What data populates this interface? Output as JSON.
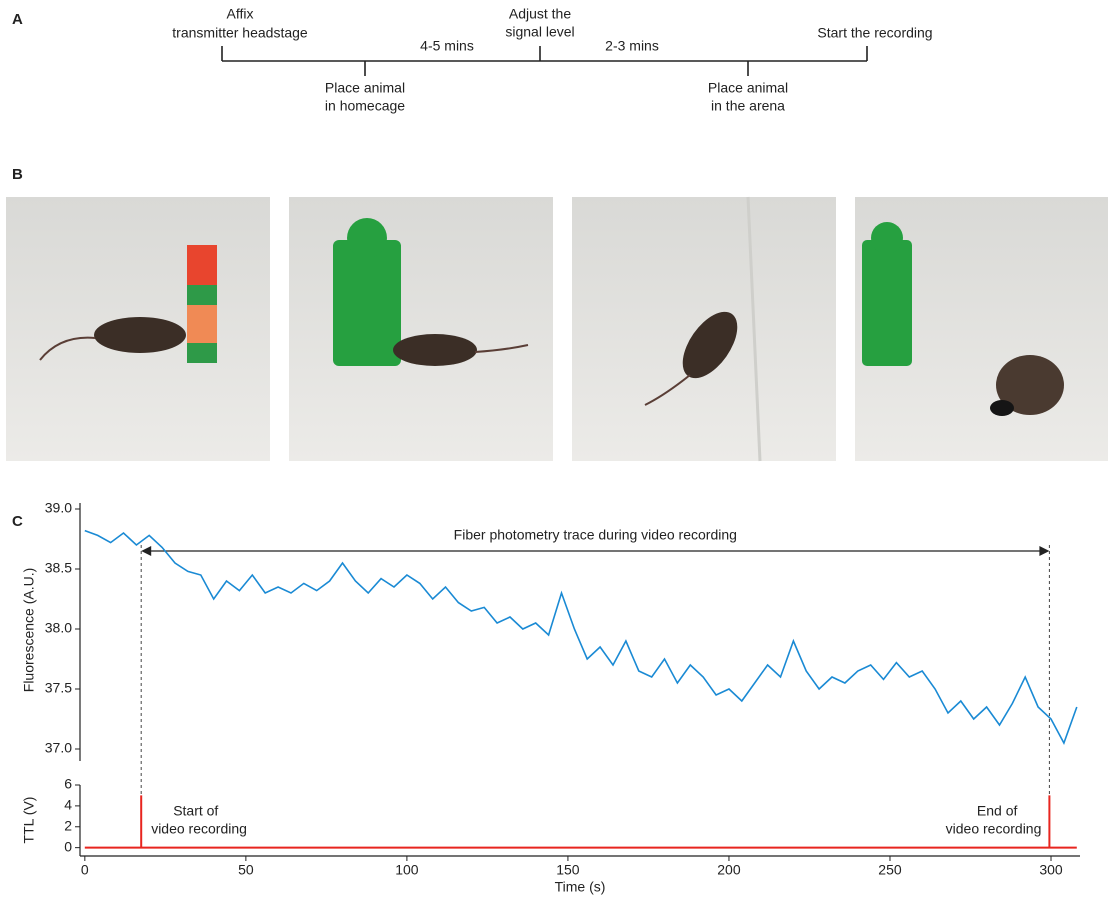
{
  "panels": {
    "a": "A",
    "b": "B",
    "c": "C"
  },
  "timeline": {
    "events": [
      {
        "lines": [
          "Affix",
          "transmitter headstage"
        ]
      },
      {
        "lines": [
          "Place animal",
          "in homecage"
        ]
      },
      {
        "lines": [
          "Adjust the",
          "signal level"
        ]
      },
      {
        "lines": [
          "Place animal",
          "in the arena"
        ]
      },
      {
        "lines": [
          "Start the recording"
        ]
      }
    ],
    "intervals": [
      "4-5 mins",
      "2-3 mins"
    ]
  },
  "chart_data": [
    {
      "type": "line",
      "ylabel": "Fluorescence (A.U.)",
      "annotation": "Fiber photometry trace during video recording",
      "x": [
        0,
        4,
        8,
        12,
        16,
        20,
        24,
        28,
        32,
        36,
        40,
        44,
        48,
        52,
        56,
        60,
        64,
        68,
        72,
        76,
        80,
        84,
        88,
        92,
        96,
        100,
        104,
        108,
        112,
        116,
        120,
        124,
        128,
        132,
        136,
        140,
        144,
        148,
        152,
        156,
        160,
        164,
        168,
        172,
        176,
        180,
        184,
        188,
        192,
        196,
        200,
        204,
        208,
        212,
        216,
        220,
        224,
        228,
        232,
        236,
        240,
        244,
        248,
        252,
        256,
        260,
        264,
        268,
        272,
        276,
        280,
        284,
        288,
        292,
        296,
        300,
        304,
        308
      ],
      "series": [
        {
          "color": "#1a8ad4",
          "values": [
            38.82,
            38.78,
            38.72,
            38.8,
            38.7,
            38.78,
            38.68,
            38.55,
            38.48,
            38.45,
            38.25,
            38.4,
            38.32,
            38.45,
            38.3,
            38.35,
            38.3,
            38.38,
            38.32,
            38.4,
            38.55,
            38.4,
            38.3,
            38.42,
            38.35,
            38.45,
            38.38,
            38.25,
            38.35,
            38.22,
            38.15,
            38.18,
            38.05,
            38.1,
            38.0,
            38.05,
            37.95,
            38.3,
            38.0,
            37.75,
            37.85,
            37.7,
            37.9,
            37.65,
            37.6,
            37.75,
            37.55,
            37.7,
            37.6,
            37.45,
            37.5,
            37.4,
            37.55,
            37.7,
            37.6,
            37.9,
            37.65,
            37.5,
            37.6,
            37.55,
            37.65,
            37.7,
            37.58,
            37.72,
            37.6,
            37.65,
            37.5,
            37.3,
            37.4,
            37.25,
            37.35,
            37.2,
            37.38,
            37.6,
            37.35,
            37.25,
            37.05,
            37.35
          ]
        }
      ],
      "xlim": [
        -1.5,
        309
      ],
      "ylim": [
        36.9,
        39.05
      ],
      "yticks": [
        {
          "value": 37,
          "label": "37.0"
        },
        {
          "value": 37.5,
          "label": "37.5"
        },
        {
          "value": 38,
          "label": "38.0"
        },
        {
          "value": 38.5,
          "label": "38.5"
        },
        {
          "value": 39,
          "label": "39.0"
        }
      ],
      "markers_x": [
        17.5,
        299.5
      ]
    },
    {
      "type": "line",
      "ylabel": "TTL (V)",
      "xlabel": "Time (s)",
      "x": [
        0,
        17.5,
        17.5,
        17.5,
        299.5,
        299.5,
        299.5,
        308
      ],
      "series": [
        {
          "color": "#e8251f",
          "values": [
            0,
            0,
            5,
            0,
            0,
            5,
            0,
            0
          ]
        }
      ],
      "xlim": [
        -1.5,
        309
      ],
      "ylim": [
        -0.8,
        6
      ],
      "yticks": [
        0,
        2,
        4,
        6
      ],
      "xticks": [
        0,
        50,
        100,
        150,
        200,
        250,
        300
      ],
      "annotations": [
        {
          "lines": [
            "Start of",
            "video recording"
          ]
        },
        {
          "lines": [
            "End of",
            "video recording"
          ]
        }
      ]
    }
  ]
}
